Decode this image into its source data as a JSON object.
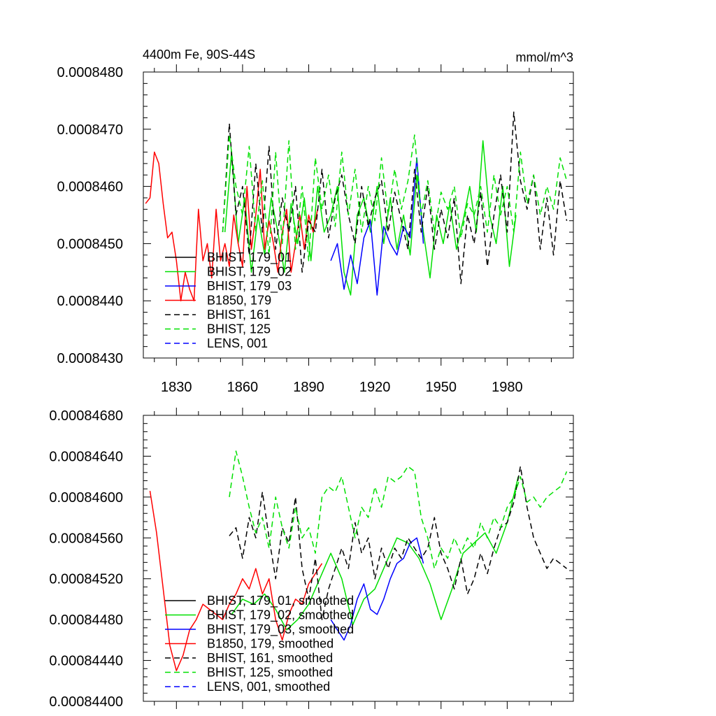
{
  "chart_data": [
    {
      "type": "line",
      "title_left": "4400m Fe, 90S-44S",
      "title_right": "mmol/m^3",
      "xlabel": "",
      "ylabel": "",
      "xlim": [
        1815,
        2010
      ],
      "ylim": [
        0.000843,
        0.000848
      ],
      "x_ticks": [
        1830,
        1860,
        1890,
        1920,
        1950,
        1980
      ],
      "x_tick_labels": [
        "1830",
        "1860",
        "1890",
        "1920",
        "1950",
        "1980"
      ],
      "y_ticks": [
        0.000843,
        0.000844,
        0.000845,
        0.000846,
        0.000847,
        0.000848
      ],
      "y_tick_labels": [
        "0.0008430",
        "0.0008440",
        "0.0008450",
        "0.0008460",
        "0.0008470",
        "0.0008480"
      ],
      "legend_position": "bottom-left",
      "series": [
        {
          "name": "BHIST, 179_01",
          "color": "#000000",
          "dash": "solid",
          "x": [],
          "values": []
        },
        {
          "name": "BHIST, 179_02",
          "color": "#00e000",
          "dash": "solid",
          "x": [
            1852,
            1855,
            1858,
            1861,
            1864,
            1867,
            1870,
            1873,
            1876,
            1879,
            1882,
            1885,
            1888,
            1891,
            1894,
            1897,
            1900,
            1903,
            1906,
            1909,
            1912,
            1915,
            1918,
            1921,
            1924,
            1927,
            1930,
            1933,
            1936,
            1939,
            1942,
            1945,
            1948,
            1951,
            1954,
            1957,
            1960,
            1963,
            1966,
            1969,
            1972,
            1975,
            1978,
            1981,
            1984
          ],
          "values": [
            0.0008452,
            0.0008466,
            0.000845,
            0.0008458,
            0.0008445,
            0.0008455,
            0.0008448,
            0.0008458,
            0.0008452,
            0.0008445,
            0.0008457,
            0.000845,
            0.0008458,
            0.0008447,
            0.000846,
            0.0008452,
            0.0008455,
            0.000846,
            0.0008445,
            0.0008441,
            0.0008455,
            0.0008458,
            0.0008452,
            0.000846,
            0.000845,
            0.0008458,
            0.0008449,
            0.0008455,
            0.0008448,
            0.0008462,
            0.0008452,
            0.0008444,
            0.0008455,
            0.000845,
            0.0008457,
            0.0008449,
            0.0008454,
            0.000846,
            0.0008452,
            0.0008468,
            0.0008455,
            0.000845,
            0.000846,
            0.0008446,
            0.0008455
          ]
        },
        {
          "name": "BHIST, 179_03",
          "color": "#0000ff",
          "dash": "solid",
          "x": [
            1900,
            1903,
            1906,
            1909,
            1912,
            1915,
            1918,
            1921,
            1924,
            1927,
            1930,
            1933,
            1936,
            1939,
            1942
          ],
          "values": [
            0.0008447,
            0.000845,
            0.0008442,
            0.0008448,
            0.0008443,
            0.0008451,
            0.0008454,
            0.0008441,
            0.0008453,
            0.000845,
            0.0008448,
            0.0008453,
            0.0008451,
            0.0008465,
            0.000845
          ]
        },
        {
          "name": "B1850, 179",
          "color": "#ff0000",
          "dash": "solid",
          "x": [
            1816,
            1818,
            1820,
            1822,
            1824,
            1826,
            1828,
            1830,
            1832,
            1834,
            1836,
            1838,
            1840,
            1842,
            1844,
            1846,
            1848,
            1850,
            1852,
            1854,
            1856,
            1858,
            1860,
            1862,
            1864,
            1866,
            1868,
            1870,
            1872,
            1874,
            1876,
            1878,
            1880,
            1882,
            1884,
            1886,
            1888,
            1890,
            1892,
            1894
          ],
          "values": [
            0.0008457,
            0.0008458,
            0.0008466,
            0.0008464,
            0.0008457,
            0.0008451,
            0.0008452,
            0.0008447,
            0.000844,
            0.0008445,
            0.0008442,
            0.000844,
            0.0008456,
            0.0008447,
            0.000845,
            0.0008444,
            0.0008456,
            0.0008447,
            0.000845,
            0.0008446,
            0.0008455,
            0.000845,
            0.0008446,
            0.000846,
            0.0008449,
            0.0008455,
            0.0008463,
            0.0008449,
            0.0008454,
            0.000845,
            0.0008445,
            0.0008452,
            0.0008456,
            0.0008445,
            0.000845,
            0.0008455,
            0.0008449,
            0.0008455,
            0.0008452,
            0.0008456
          ]
        },
        {
          "name": "BHIST, 161",
          "color": "#000000",
          "dash": "dashed",
          "x": [
            1851,
            1854,
            1857,
            1860,
            1863,
            1866,
            1869,
            1872,
            1875,
            1878,
            1881,
            1884,
            1887,
            1890,
            1893,
            1896,
            1899,
            1902,
            1905,
            1908,
            1911,
            1914,
            1917,
            1920,
            1923,
            1926,
            1929,
            1932,
            1935,
            1938,
            1941,
            1944,
            1947,
            1950,
            1953,
            1956,
            1959,
            1962,
            1965,
            1968,
            1971,
            1974,
            1977,
            1980,
            1983,
            1986,
            1989,
            1992,
            1995,
            1998,
            2001,
            2004,
            2007
          ],
          "values": [
            0.0008452,
            0.0008471,
            0.0008455,
            0.000846,
            0.0008448,
            0.0008464,
            0.0008452,
            0.0008467,
            0.0008449,
            0.0008458,
            0.0008452,
            0.000846,
            0.0008445,
            0.0008454,
            0.0008452,
            0.0008463,
            0.0008451,
            0.0008458,
            0.0008462,
            0.0008455,
            0.000845,
            0.000846,
            0.0008453,
            0.0008458,
            0.0008461,
            0.0008452,
            0.0008459,
            0.0008454,
            0.0008449,
            0.0008463,
            0.0008452,
            0.000846,
            0.0008449,
            0.0008456,
            0.0008451,
            0.0008458,
            0.0008443,
            0.0008455,
            0.000845,
            0.0008459,
            0.0008446,
            0.0008455,
            0.0008462,
            0.0008452,
            0.0008473,
            0.0008461,
            0.0008456,
            0.0008462,
            0.0008449,
            0.0008458,
            0.0008448,
            0.0008461,
            0.0008454
          ]
        },
        {
          "name": "BHIST, 125",
          "color": "#00e000",
          "dash": "dashed",
          "x": [
            1851,
            1854,
            1857,
            1860,
            1863,
            1866,
            1869,
            1872,
            1875,
            1878,
            1881,
            1884,
            1887,
            1890,
            1893,
            1896,
            1899,
            1902,
            1905,
            1908,
            1911,
            1914,
            1917,
            1920,
            1923,
            1926,
            1929,
            1932,
            1935,
            1938,
            1941,
            1944,
            1947,
            1950,
            1953,
            1956,
            1959,
            1962,
            1965,
            1968,
            1971,
            1974,
            1977,
            1980,
            1983,
            1986,
            1989,
            1992,
            1995,
            1998,
            2001,
            2004,
            2007
          ],
          "values": [
            0.0008452,
            0.0008469,
            0.000846,
            0.0008455,
            0.0008467,
            0.0008452,
            0.0008461,
            0.0008448,
            0.0008466,
            0.000845,
            0.0008468,
            0.0008449,
            0.000846,
            0.0008447,
            0.0008465,
            0.0008456,
            0.0008462,
            0.0008453,
            0.0008466,
            0.0008455,
            0.0008463,
            0.0008452,
            0.000846,
            0.0008454,
            0.0008465,
            0.0008455,
            0.0008463,
            0.0008456,
            0.0008461,
            0.0008469,
            0.0008455,
            0.0008461,
            0.0008452,
            0.0008459,
            0.0008456,
            0.000846,
            0.0008451,
            0.0008457,
            0.0008455,
            0.000846,
            0.0008452,
            0.0008462,
            0.0008455,
            0.000846,
            0.0008452,
            0.0008466,
            0.0008457,
            0.0008462,
            0.0008455,
            0.000846,
            0.0008456,
            0.0008465,
            0.0008461
          ]
        },
        {
          "name": "LENS, 001",
          "color": "#0000ff",
          "dash": "dashed",
          "x": [],
          "values": []
        }
      ]
    },
    {
      "type": "line",
      "title_left": "",
      "title_right": "",
      "xlabel": "",
      "ylabel": "",
      "xlim": [
        1815,
        2010
      ],
      "ylim": [
        0.000844,
        0.0008468
      ],
      "x_ticks": [
        1830,
        1860,
        1890,
        1920,
        1950,
        1980
      ],
      "x_tick_labels": [],
      "y_ticks": [
        0.000844,
        0.0008444,
        0.0008448,
        0.0008452,
        0.0008456,
        0.000846,
        0.0008464,
        0.0008468
      ],
      "y_tick_labels": [
        "0.00084400",
        "0.00084440",
        "0.00084480",
        "0.00084520",
        "0.00084560",
        "0.00084600",
        "0.00084640",
        "0.00084680"
      ],
      "legend_position": "bottom-left",
      "series": [
        {
          "name": "BHIST, 179_01, smoothed",
          "color": "#000000",
          "dash": "solid",
          "x": [],
          "values": []
        },
        {
          "name": "BHIST, 179_02, smoothed",
          "color": "#00e000",
          "dash": "solid",
          "x": [
            1855,
            1860,
            1865,
            1870,
            1875,
            1880,
            1885,
            1890,
            1895,
            1900,
            1905,
            1910,
            1915,
            1920,
            1925,
            1930,
            1935,
            1940,
            1945,
            1950,
            1955,
            1960,
            1965,
            1970,
            1975,
            1980,
            1985
          ],
          "values": [
            0.00084485,
            0.000845,
            0.00084495,
            0.00084505,
            0.0008449,
            0.0008447,
            0.0008448,
            0.00084495,
            0.0008452,
            0.00084545,
            0.0008452,
            0.00084475,
            0.000845,
            0.0008451,
            0.00084535,
            0.0008456,
            0.00084555,
            0.0008454,
            0.00084515,
            0.0008448,
            0.0008451,
            0.00084545,
            0.00084555,
            0.00084565,
            0.00084545,
            0.00084575,
            0.0008462
          ]
        },
        {
          "name": "BHIST, 179_03, smoothed",
          "color": "#0000ff",
          "dash": "solid",
          "x": [
            1900,
            1903,
            1906,
            1909,
            1912,
            1915,
            1918,
            1921,
            1924,
            1927,
            1930,
            1933,
            1936,
            1939,
            1942
          ],
          "values": [
            0.0008448,
            0.0008447,
            0.0008446,
            0.00084475,
            0.000845,
            0.00084515,
            0.0008449,
            0.00084485,
            0.000845,
            0.0008452,
            0.00084535,
            0.0008454,
            0.00084555,
            0.0008456,
            0.00084535
          ]
        },
        {
          "name": "B1850, 179, smoothed",
          "color": "#ff0000",
          "dash": "solid",
          "x": [
            1818,
            1821,
            1824,
            1827,
            1830,
            1833,
            1836,
            1839,
            1842,
            1845,
            1848,
            1851,
            1854,
            1857,
            1860,
            1863,
            1866,
            1869,
            1872,
            1875,
            1878,
            1881,
            1884,
            1887,
            1890,
            1893,
            1896
          ],
          "values": [
            0.00084606,
            0.00084565,
            0.0008451,
            0.00084455,
            0.0008443,
            0.00084445,
            0.0008447,
            0.0008448,
            0.00084495,
            0.0008449,
            0.00084485,
            0.0008448,
            0.00084495,
            0.00084505,
            0.0008452,
            0.0008451,
            0.0008453,
            0.00084505,
            0.0008452,
            0.0008448,
            0.0008446,
            0.00084485,
            0.000845,
            0.00084495,
            0.00084515,
            0.00084525,
            0.00084535
          ]
        },
        {
          "name": "BHIST, 161, smoothed",
          "color": "#000000",
          "dash": "dashed",
          "x": [
            1854,
            1857,
            1860,
            1863,
            1866,
            1869,
            1872,
            1875,
            1878,
            1881,
            1884,
            1887,
            1890,
            1893,
            1896,
            1899,
            1902,
            1905,
            1908,
            1911,
            1914,
            1917,
            1920,
            1923,
            1926,
            1929,
            1932,
            1935,
            1938,
            1941,
            1944,
            1947,
            1950,
            1953,
            1956,
            1959,
            1962,
            1965,
            1968,
            1971,
            1974,
            1977,
            1980,
            1983,
            1986,
            1989,
            1992,
            1995,
            1998,
            2001,
            2004,
            2007
          ],
          "values": [
            0.00084562,
            0.0008457,
            0.0008454,
            0.0008458,
            0.0008456,
            0.00084605,
            0.0008456,
            0.0008452,
            0.0008457,
            0.00084555,
            0.000846,
            0.0008453,
            0.000845,
            0.0008454,
            0.0008448,
            0.0008451,
            0.0008453,
            0.0008455,
            0.0008453,
            0.00084575,
            0.00084545,
            0.0008456,
            0.0008452,
            0.0008455,
            0.0008453,
            0.0008455,
            0.0008454,
            0.0008456,
            0.0008455,
            0.0008454,
            0.0008455,
            0.0008458,
            0.00084545,
            0.0008453,
            0.0008451,
            0.0008454,
            0.00084505,
            0.0008452,
            0.00084545,
            0.00084525,
            0.0008455,
            0.0008457,
            0.00084575,
            0.00084595,
            0.0008463,
            0.0008459,
            0.0008456,
            0.00084545,
            0.0008453,
            0.0008454,
            0.00084535,
            0.0008453
          ]
        },
        {
          "name": "BHIST, 125, smoothed",
          "color": "#00e000",
          "dash": "dashed",
          "x": [
            1854,
            1857,
            1860,
            1863,
            1866,
            1869,
            1872,
            1875,
            1878,
            1881,
            1884,
            1887,
            1890,
            1893,
            1896,
            1899,
            1902,
            1905,
            1908,
            1911,
            1914,
            1917,
            1920,
            1923,
            1926,
            1929,
            1932,
            1935,
            1938,
            1941,
            1944,
            1947,
            1950,
            1953,
            1956,
            1959,
            1962,
            1965,
            1968,
            1971,
            1974,
            1977,
            1980,
            1983,
            1986,
            1989,
            1992,
            1995,
            1998,
            2001,
            2004,
            2007
          ],
          "values": [
            0.000846,
            0.00084645,
            0.0008462,
            0.0008459,
            0.00084565,
            0.0008458,
            0.0008455,
            0.000846,
            0.0008457,
            0.0008455,
            0.0008459,
            0.0008456,
            0.0008457,
            0.00084545,
            0.000846,
            0.0008461,
            0.00084605,
            0.0008462,
            0.0008459,
            0.0008456,
            0.0008459,
            0.0008458,
            0.0008461,
            0.0008459,
            0.0008462,
            0.00084615,
            0.0008462,
            0.0008463,
            0.00084625,
            0.0008458,
            0.0008456,
            0.0008453,
            0.0008455,
            0.0008454,
            0.0008456,
            0.00084545,
            0.0008456,
            0.0008455,
            0.00084575,
            0.0008456,
            0.0008458,
            0.0008457,
            0.0008459,
            0.000846,
            0.0008462,
            0.00084595,
            0.000846,
            0.0008459,
            0.000846,
            0.00084605,
            0.0008461,
            0.00084625
          ]
        },
        {
          "name": "LENS, 001, smoothed",
          "color": "#0000ff",
          "dash": "dashed",
          "x": [],
          "values": []
        }
      ]
    }
  ]
}
